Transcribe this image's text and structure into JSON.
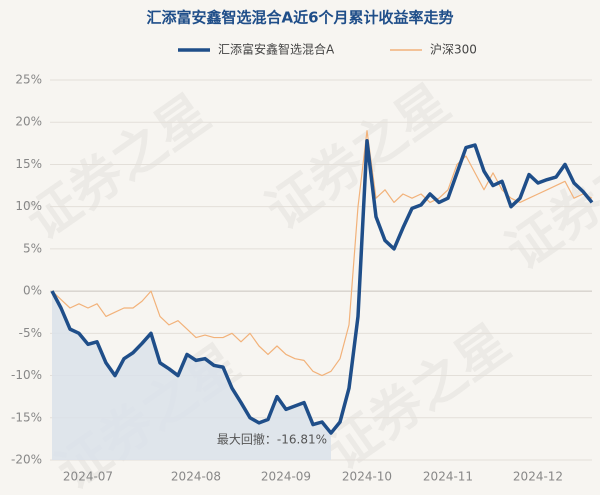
{
  "chart_data": {
    "type": "line",
    "title": "汇添富安鑫智选混合A近6个月累计收益率走势",
    "watermark": "证券之星",
    "annotation": "最大回撤：-16.81%",
    "categories": [
      null,
      null,
      null,
      null,
      "2024-07",
      null,
      null,
      null,
      null,
      null,
      null,
      null,
      null,
      null,
      null,
      null,
      "2024-08",
      null,
      null,
      null,
      null,
      null,
      null,
      null,
      null,
      null,
      "2024-09",
      null,
      null,
      null,
      null,
      null,
      null,
      null,
      null,
      "2024-10",
      null,
      null,
      null,
      null,
      null,
      null,
      null,
      null,
      "2024-11",
      null,
      null,
      null,
      null,
      null,
      null,
      null,
      null,
      null,
      "2024-12",
      null,
      null,
      null,
      null,
      null,
      null
    ],
    "series": [
      {
        "name": "汇添富安鑫智选混合A",
        "color": "#1f4e89",
        "values": [
          0,
          -2,
          -4.5,
          -5,
          -6.3,
          -6,
          -8.5,
          -10,
          -8,
          -7.3,
          -6.2,
          -5,
          -8.5,
          -9.2,
          -10,
          -7.5,
          -8.2,
          -8,
          -8.8,
          -9,
          -11.5,
          -13.2,
          -15,
          -15.6,
          -15.2,
          -12.5,
          -14,
          -13.6,
          -13.2,
          -15.8,
          -15.5,
          -16.81,
          -15.5,
          -11.5,
          -3,
          17.8,
          8.8,
          6,
          5,
          7.5,
          9.8,
          10.2,
          11.5,
          10.5,
          11,
          14,
          17,
          17.3,
          14.2,
          12.5,
          13,
          10,
          11,
          13.8,
          12.8,
          13.2,
          13.5,
          15,
          12.8,
          11.8,
          10.5
        ]
      },
      {
        "name": "沪深300",
        "color": "#f2b27a",
        "values": [
          0,
          -1,
          -2,
          -1.5,
          -2,
          -1.5,
          -3,
          -2.5,
          -2,
          -2,
          -1.2,
          0,
          -3,
          -4,
          -3.5,
          -4.5,
          -5.5,
          -5.2,
          -5.5,
          -5.5,
          -5,
          -6,
          -5,
          -6.5,
          -7.5,
          -6.5,
          -7.5,
          -8,
          -8.2,
          -9.5,
          -10,
          -9.5,
          -8,
          -4,
          10,
          19,
          11,
          12,
          10.5,
          11.5,
          11,
          11.5,
          10.5,
          11,
          12,
          15,
          16,
          14,
          12,
          14,
          12,
          11,
          10.5,
          11,
          11.5,
          12,
          12.5,
          13,
          11,
          11.5,
          11
        ]
      }
    ],
    "ylim": [
      -20,
      25
    ],
    "yticks": [
      {
        "value": -20,
        "label": "-20%"
      },
      {
        "value": -15,
        "label": "-15%"
      },
      {
        "value": -10,
        "label": "-10%"
      },
      {
        "value": -5,
        "label": "-5%"
      },
      {
        "value": 0,
        "label": "0%"
      },
      {
        "value": 5,
        "label": "5%"
      },
      {
        "value": 10,
        "label": "10%"
      },
      {
        "value": 15,
        "label": "15%"
      },
      {
        "value": 20,
        "label": "20%"
      },
      {
        "value": 25,
        "label": "25%"
      }
    ],
    "grid": true
  }
}
